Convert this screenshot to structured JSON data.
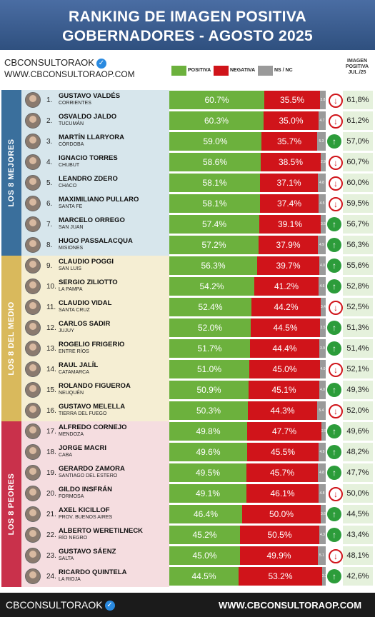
{
  "header": {
    "title_line1": "RANKING DE IMAGEN POSITIVA",
    "title_line2": "GOBERNADORES - AGOSTO 2025"
  },
  "brand": {
    "handle": "CBCONSULTORAOK",
    "url": "WWW.CBCONSULTORAOP.COM"
  },
  "legend": {
    "positive": "POSITIVA",
    "negative": "NEGATIVA",
    "nsnc": "NS / NC"
  },
  "image_header": [
    "IMAGEN",
    "POSITIVA",
    "JUL./25"
  ],
  "groups": [
    "LOS 8 MEJORES",
    "LOS 8 DEL MEDIO",
    "LOS 8 PEORES"
  ],
  "colors": {
    "positive": "#6cb13d",
    "negative": "#d0141a",
    "nsnc": "#9a9a9a",
    "header": "#3d5f93",
    "group1": "#3a6f9c",
    "group2": "#d9b95c",
    "group3": "#c9314b",
    "band1": "#d7e6ec",
    "band2": "#f5eed3",
    "band3": "#f5dde0"
  },
  "footer": {
    "handle": "CBCONSULTORAOK",
    "url": "WWW.CBCONSULTORAOP.COM"
  },
  "chart_data": {
    "type": "bar",
    "title": "RANKING DE IMAGEN POSITIVA GOBERNADORES - AGOSTO 2025",
    "series_names": [
      "POSITIVA",
      "NEGATIVA",
      "NS / NC",
      "IMAGEN POSITIVA JUL./25"
    ],
    "rows": [
      {
        "rank": "1.",
        "name": "GUSTAVO VALDÉS",
        "prov": "CORRIENTES",
        "pos": "60.7%",
        "neg": "35.5%",
        "ns": "3.8",
        "trend": "down",
        "prev": "61,8%",
        "pv": 60.7,
        "nv": 35.5,
        "sv": 3.8
      },
      {
        "rank": "2.",
        "name": "OSVALDO JALDO",
        "prov": "TUCUMÁN",
        "pos": "60.3%",
        "neg": "35.0%",
        "ns": "4.7",
        "trend": "down",
        "prev": "61,2%",
        "pv": 60.3,
        "nv": 35.0,
        "sv": 4.7
      },
      {
        "rank": "3.",
        "name": "MARTÍN LLARYORA",
        "prov": "CÓRDOBA",
        "pos": "59.0%",
        "neg": "35.7%",
        "ns": "5.3",
        "trend": "up",
        "prev": "57,0%",
        "pv": 59.0,
        "nv": 35.7,
        "sv": 5.3
      },
      {
        "rank": "4.",
        "name": "IGNACIO TORRES",
        "prov": "CHUBUT",
        "pos": "58.6%",
        "neg": "38.5%",
        "ns": "2.9",
        "trend": "down",
        "prev": "60,7%",
        "pv": 58.6,
        "nv": 38.5,
        "sv": 2.9
      },
      {
        "rank": "5.",
        "name": "LEANDRO ZDERO",
        "prov": "CHACO",
        "pos": "58.1%",
        "neg": "37.1%",
        "ns": "4.8",
        "trend": "down",
        "prev": "60,0%",
        "pv": 58.1,
        "nv": 37.1,
        "sv": 4.8
      },
      {
        "rank": "6.",
        "name": "MAXIMILIANO PULLARO",
        "prov": "SANTA FE",
        "pos": "58.1%",
        "neg": "37.4%",
        "ns": "4.5",
        "trend": "down",
        "prev": "59,5%",
        "pv": 58.1,
        "nv": 37.4,
        "sv": 4.5
      },
      {
        "rank": "7.",
        "name": "MARCELO ORREGO",
        "prov": "SAN JUAN",
        "pos": "57.4%",
        "neg": "39.1%",
        "ns": "3.5",
        "trend": "up",
        "prev": "56,7%",
        "pv": 57.4,
        "nv": 39.1,
        "sv": 3.5
      },
      {
        "rank": "8.",
        "name": "HUGO PASSALACQUA",
        "prov": "MISIONES",
        "pos": "57.2%",
        "neg": "37.9%",
        "ns": "4.9",
        "trend": "up",
        "prev": "56,3%",
        "pv": 57.2,
        "nv": 37.9,
        "sv": 4.9
      },
      {
        "rank": "9.",
        "name": "CLAUDIO POGGI",
        "prov": "SAN LUIS",
        "pos": "56.3%",
        "neg": "39.7%",
        "ns": "4.0",
        "trend": "up",
        "prev": "55,6%",
        "pv": 56.3,
        "nv": 39.7,
        "sv": 4.0
      },
      {
        "rank": "10.",
        "name": "SERGIO ZILIOTTO",
        "prov": "LA PAMPA",
        "pos": "54.2%",
        "neg": "41.2%",
        "ns": "4.6",
        "trend": "up",
        "prev": "52,8%",
        "pv": 54.2,
        "nv": 41.2,
        "sv": 4.6
      },
      {
        "rank": "11.",
        "name": "CLAUDIO VIDAL",
        "prov": "SANTA CRUZ",
        "pos": "52.4%",
        "neg": "44.2%",
        "ns": "3.4",
        "trend": "down",
        "prev": "52,5%",
        "pv": 52.4,
        "nv": 44.2,
        "sv": 3.4
      },
      {
        "rank": "12.",
        "name": "CARLOS SADIR",
        "prov": "JUJUY",
        "pos": "52.0%",
        "neg": "44.5%",
        "ns": "3.5",
        "trend": "up",
        "prev": "51,3%",
        "pv": 52.0,
        "nv": 44.5,
        "sv": 3.5
      },
      {
        "rank": "13.",
        "name": "ROGELIO FRIGERIO",
        "prov": "ENTRE RÍOS",
        "pos": "51.7%",
        "neg": "44.4%",
        "ns": "3.9",
        "trend": "up",
        "prev": "51,4%",
        "pv": 51.7,
        "nv": 44.4,
        "sv": 3.9
      },
      {
        "rank": "14.",
        "name": "RAUL JALÍL",
        "prov": "CATAMARCA",
        "pos": "51.0%",
        "neg": "45.0%",
        "ns": "4.0",
        "trend": "down",
        "prev": "52,1%",
        "pv": 51.0,
        "nv": 45.0,
        "sv": 4.0
      },
      {
        "rank": "15.",
        "name": "ROLANDO FIGUEROA",
        "prov": "NEUQUÉN",
        "pos": "50.9%",
        "neg": "45.1%",
        "ns": "4.0",
        "trend": "up",
        "prev": "49,3%",
        "pv": 50.9,
        "nv": 45.1,
        "sv": 4.0
      },
      {
        "rank": "16.",
        "name": "GUSTAVO MELELLA",
        "prov": "TIERRA DEL FUEGO",
        "pos": "50.3%",
        "neg": "44.3%",
        "ns": "5.4",
        "trend": "down",
        "prev": "52,0%",
        "pv": 50.3,
        "nv": 44.3,
        "sv": 5.4
      },
      {
        "rank": "17.",
        "name": "ALFREDO CORNEJO",
        "prov": "MENDOZA",
        "pos": "49.8%",
        "neg": "47.7%",
        "ns": "2.5",
        "trend": "up",
        "prev": "49,6%",
        "pv": 49.8,
        "nv": 47.7,
        "sv": 2.5
      },
      {
        "rank": "18.",
        "name": "JORGE MACRI",
        "prov": "CABA",
        "pos": "49.6%",
        "neg": "45.5%",
        "ns": "4.9",
        "trend": "up",
        "prev": "48,2%",
        "pv": 49.6,
        "nv": 45.5,
        "sv": 4.9
      },
      {
        "rank": "19.",
        "name": "GERARDO ZAMORA",
        "prov": "SANTIAGO DEL ESTERO",
        "pos": "49.5%",
        "neg": "45.7%",
        "ns": "4.8",
        "trend": "up",
        "prev": "47,7%",
        "pv": 49.5,
        "nv": 45.7,
        "sv": 4.8
      },
      {
        "rank": "20.",
        "name": "GILDO INSFRÁN",
        "prov": "FORMOSA",
        "pos": "49.1%",
        "neg": "46.1%",
        "ns": "4.8",
        "trend": "down",
        "prev": "50,0%",
        "pv": 49.1,
        "nv": 46.1,
        "sv": 4.8
      },
      {
        "rank": "21.",
        "name": "AXEL KICILLOF",
        "prov": "PROV. BUENOS AIRES",
        "pos": "46.4%",
        "neg": "50.0%",
        "ns": "3.6",
        "trend": "up",
        "prev": "44,5%",
        "pv": 46.4,
        "nv": 50.0,
        "sv": 3.6
      },
      {
        "rank": "22.",
        "name": "ALBERTO WERETILNECK",
        "prov": "RÍO NEGRO",
        "pos": "45.2%",
        "neg": "50.5%",
        "ns": "4.3",
        "trend": "up",
        "prev": "43,4%",
        "pv": 45.2,
        "nv": 50.5,
        "sv": 4.3
      },
      {
        "rank": "23.",
        "name": "GUSTAVO SÁENZ",
        "prov": "SALTA",
        "pos": "45.0%",
        "neg": "49.9%",
        "ns": "5.1",
        "trend": "down",
        "prev": "48,1%",
        "pv": 45.0,
        "nv": 49.9,
        "sv": 5.1
      },
      {
        "rank": "24.",
        "name": "RICARDO QUINTELA",
        "prov": "LA RIOJA",
        "pos": "44.5%",
        "neg": "53.2%",
        "ns": "2.3",
        "trend": "up",
        "prev": "42,6%",
        "pv": 44.5,
        "nv": 53.2,
        "sv": 2.3
      }
    ]
  }
}
